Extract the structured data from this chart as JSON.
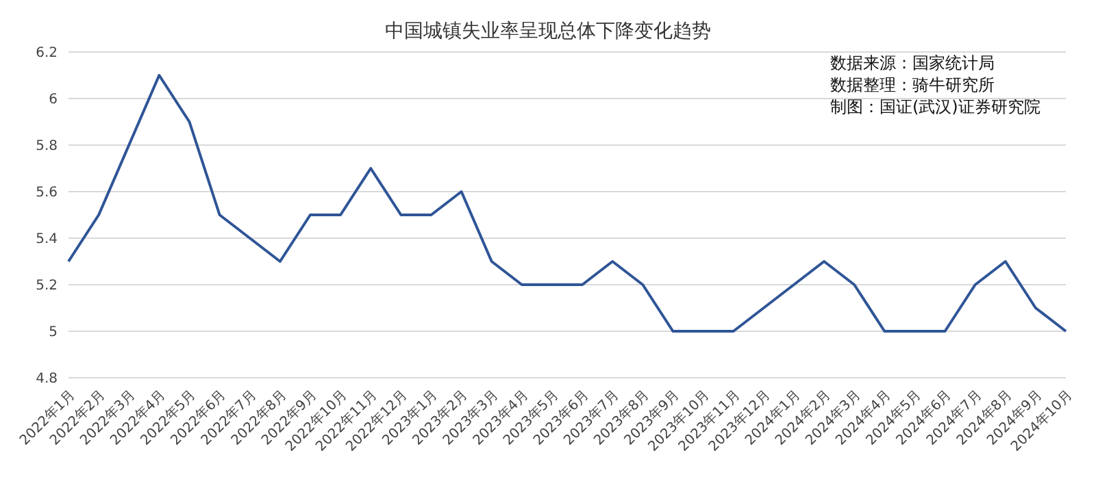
{
  "chart_data": {
    "type": "line",
    "title": "中国城镇失业率呈现总体下降变化趋势",
    "annotations": [
      "数据来源：国家统计局",
      "数据整理：骑牛研究所",
      "制图：国证(武汉)证券研究院"
    ],
    "categories": [
      "2022年1月",
      "2022年2月",
      "2022年3月",
      "2022年4月",
      "2022年5月",
      "2022年6月",
      "2022年7月",
      "2022年8月",
      "2022年9月",
      "2022年10月",
      "2022年11月",
      "2022年12月",
      "2023年1月",
      "2023年2月",
      "2023年3月",
      "2023年4月",
      "2023年5月",
      "2023年6月",
      "2023年7月",
      "2023年8月",
      "2023年9月",
      "2023年10月",
      "2023年11月",
      "2023年12月",
      "2024年1月",
      "2024年2月",
      "2024年3月",
      "2024年4月",
      "2024年5月",
      "2024年6月",
      "2024年7月",
      "2024年8月",
      "2024年9月",
      "2024年10月"
    ],
    "series": [
      {
        "color": "#2f5597",
        "values": [
          5.3,
          5.5,
          5.8,
          6.1,
          5.9,
          5.5,
          5.4,
          5.3,
          5.5,
          5.5,
          5.7,
          5.5,
          5.5,
          5.6,
          5.3,
          5.2,
          5.2,
          5.2,
          5.3,
          5.2,
          5.0,
          5.0,
          5.0,
          5.1,
          5.2,
          5.3,
          5.2,
          5.0,
          5.0,
          5.0,
          5.2,
          5.3,
          5.1,
          5.0
        ]
      }
    ],
    "ylim": [
      4.8,
      6.2
    ],
    "yticks": [
      4.8,
      5,
      5.2,
      5.4,
      5.6,
      5.8,
      6,
      6.2
    ],
    "grid": "y",
    "legend": false,
    "marker": "none",
    "line_style": "solid"
  }
}
